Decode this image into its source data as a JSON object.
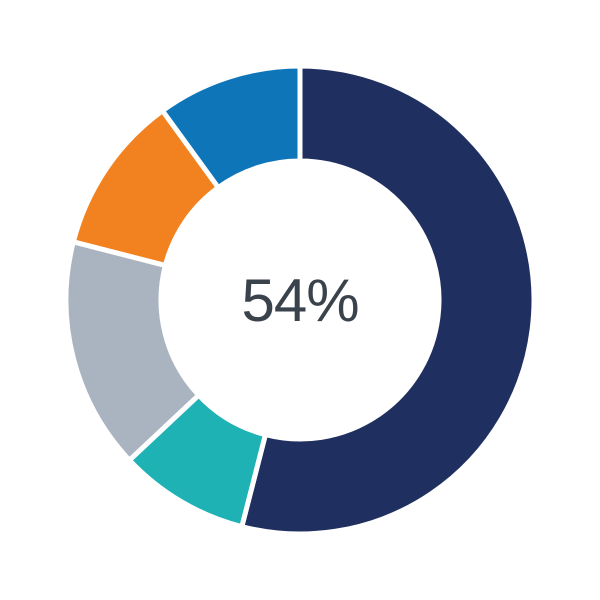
{
  "chart_data": {
    "type": "pie",
    "subtype": "donut",
    "title": "",
    "center_label": "54%",
    "center_label_color": "#3a424c",
    "background_color": "#ffffff",
    "gap_color": "#ffffff",
    "hole_color": "#ffffff",
    "start_angle_deg": 0,
    "direction": "clockwise",
    "inner_radius_ratio": 0.6,
    "legend": "none",
    "segments": [
      {
        "name": "navy",
        "value": 54,
        "color": "#1f3060"
      },
      {
        "name": "teal",
        "value": 9,
        "color": "#1eb2b5"
      },
      {
        "name": "gray",
        "value": 16,
        "color": "#a9b4c0"
      },
      {
        "name": "orange",
        "value": 11,
        "color": "#f2811f"
      },
      {
        "name": "blue",
        "value": 10,
        "color": "#0e76b8"
      }
    ]
  }
}
